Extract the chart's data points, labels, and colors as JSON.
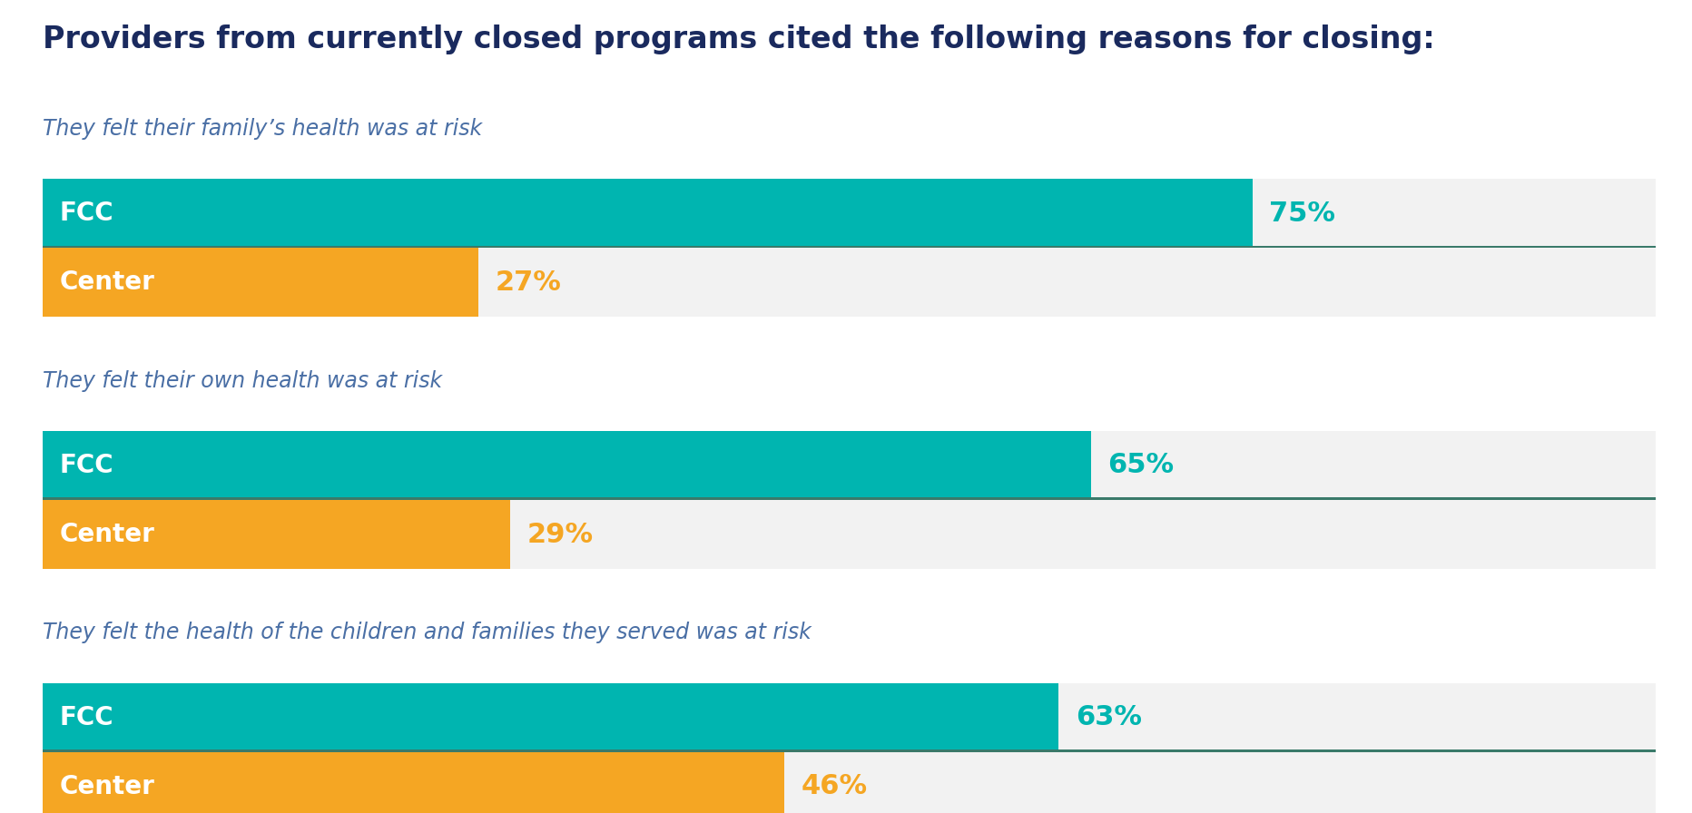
{
  "title": "Providers from currently closed programs cited the following reasons for closing:",
  "title_color": "#1a2a5e",
  "title_fontsize": 24,
  "background_color": "#ffffff",
  "groups": [
    {
      "subtitle": "They felt their family’s health was at risk",
      "subtitle_color": "#4a6fa5",
      "bars": [
        {
          "label": "FCC",
          "value": 75,
          "color": "#00b5b0",
          "text_color": "#ffffff",
          "pct_color": "#00b5b0"
        },
        {
          "label": "Center",
          "value": 27,
          "color": "#f5a623",
          "text_color": "#ffffff",
          "pct_color": "#f5a623"
        }
      ]
    },
    {
      "subtitle": "They felt their own health was at risk",
      "subtitle_color": "#4a6fa5",
      "bars": [
        {
          "label": "FCC",
          "value": 65,
          "color": "#00b5b0",
          "text_color": "#ffffff",
          "pct_color": "#00b5b0"
        },
        {
          "label": "Center",
          "value": 29,
          "color": "#f5a623",
          "text_color": "#ffffff",
          "pct_color": "#f5a623"
        }
      ]
    },
    {
      "subtitle": "They felt the health of the children and families they served was at risk",
      "subtitle_color": "#4a6fa5",
      "bars": [
        {
          "label": "FCC",
          "value": 63,
          "color": "#00b5b0",
          "text_color": "#ffffff",
          "pct_color": "#00b5b0"
        },
        {
          "label": "Center",
          "value": 46,
          "color": "#f5a623",
          "text_color": "#ffffff",
          "pct_color": "#f5a623"
        }
      ]
    }
  ],
  "bar_bg_color": "#f2f2f2",
  "divider_color": "#3a7a6a",
  "label_fontsize": 20,
  "pct_fontsize": 22,
  "subtitle_fontsize": 17
}
